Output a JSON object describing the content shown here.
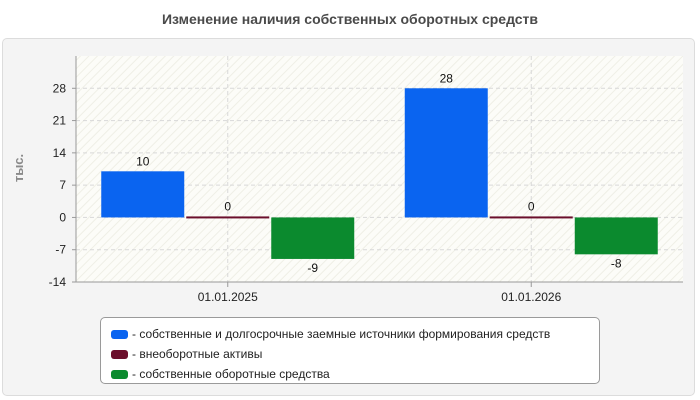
{
  "chart_data": {
    "type": "bar",
    "title": "Изменение наличия собственных оборотных средств",
    "ylabel": "тыс.",
    "xlabel": "",
    "categories": [
      "01.01.2025",
      "01.01.2026"
    ],
    "ylim": [
      -14,
      35
    ],
    "yticks": [
      28,
      21,
      14,
      7,
      0,
      -7,
      -14
    ],
    "grid": true,
    "legend_position": "bottom",
    "series": [
      {
        "name": "собственные и долгосрочные заемные источники формирования средств",
        "values": [
          10,
          28
        ],
        "color": "#0a64f0"
      },
      {
        "name": "внеоборотные активы",
        "values": [
          0,
          0
        ],
        "color": "#6b0f2c"
      },
      {
        "name": "собственные оборотные средства",
        "values": [
          -9,
          -8
        ],
        "color": "#0b8a2e"
      }
    ]
  }
}
